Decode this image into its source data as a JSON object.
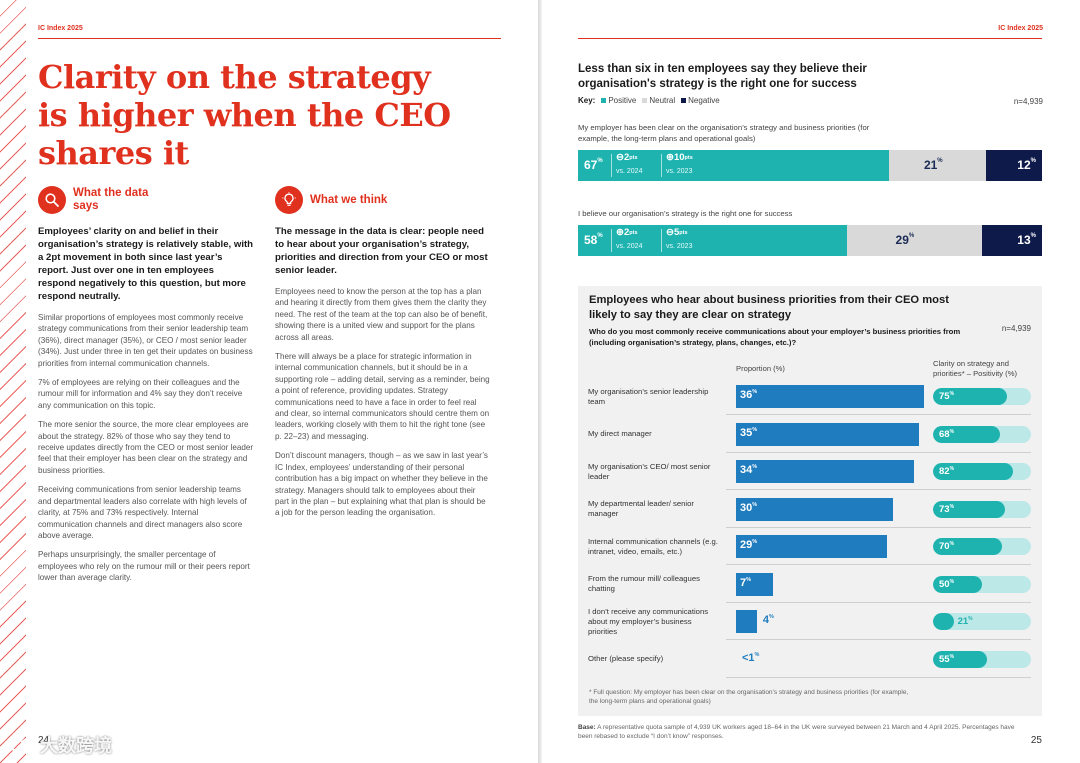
{
  "left_page": {
    "running_head": "IC Index 2025",
    "headline": "Clarity on the strategy is higher when the CEO shares it",
    "page_number": "24",
    "what_data_says": {
      "title": "What the data says",
      "icon": "magnifier-icon",
      "lead": "Employees’ clarity on and belief in their organisation’s strategy is relatively stable, with a 2pt movement in both since last year’s report. Just over one in ten employees respond negatively to this question, but more respond neutrally.",
      "paragraphs": [
        "Similar proportions of employees most commonly receive strategy communications from their senior leadership team (36%), direct manager (35%), or CEO / most senior leader (34%). Just under three in ten get their updates on business priorities from internal communication channels.",
        "7% of employees are relying on their colleagues and the rumour mill for information and 4% say they don’t receive any communication on this topic.",
        "The more senior the source, the more clear employees are about the strategy. 82% of those who say they tend to receive updates directly from the CEO or most senior leader feel that their employer has been clear on the strategy and business priorities.",
        "Receiving communications from senior leadership teams and departmental leaders also correlate with high levels of clarity, at 75% and 73% respectively. Internal communication channels and direct managers also score above average.",
        "Perhaps unsurprisingly, the smaller percentage of employees who rely on the rumour mill or their peers report lower than average clarity."
      ]
    },
    "what_we_think": {
      "title": "What we think",
      "icon": "lightbulb-icon",
      "lead": "The message in the data is clear: people need to hear about your organisation’s strategy, priorities and direction from your CEO or most senior leader.",
      "paragraphs": [
        "Employees need to know the person at the top has a plan and hearing it directly from them gives them the clarity they need. The rest of the team at the top can also be of benefit, showing there is a united view and support for the plans across all areas.",
        "There will always be a place for strategic information in internal communication channels, but it should be in a supporting role – adding detail, serving as a reminder, being a point of reference, providing updates. Strategy communications need to have a face in order to feel real and clear, so internal communicators should centre them on leaders, working closely with them to hit the right tone (see p. 22–23) and messaging.",
        "Don’t discount managers, though – as we saw in last year’s IC Index, employees’ understanding of their personal contribution has a big impact on whether they believe in the strategy. Managers should talk to employees about their part in the plan – but explaining what that plan is should be a job for the person leading the organisation."
      ]
    },
    "watermark": "大数跨境"
  },
  "right_page": {
    "running_head": "IC Index 2025",
    "page_number": "25",
    "base_note_label": "Base:",
    "base_note": "A representative quota sample of 4,939 UK workers aged 18–64 in the UK were surveyed between 21 March and 4 April 2025. Percentages have been rebased to exclude “I don’t know” responses."
  },
  "chart_data": [
    {
      "type": "stacked-bar",
      "title": "Less than six in ten employees say they believe their organisation's strategy is the right one for success",
      "key_label": "Key:",
      "legend": [
        {
          "name": "Positive",
          "color": "#1fb3b0"
        },
        {
          "name": "Neutral",
          "color": "#d9d9d9"
        },
        {
          "name": "Negative",
          "color": "#0e1a4a"
        }
      ],
      "n": "n=4,939",
      "rows": [
        {
          "question": "My employer has been clear on the organisation’s strategy and business priorities (for example, the long-term plans and operational goals)",
          "positive": 67,
          "neutral": 21,
          "negative": 12,
          "changes": [
            {
              "sign": "−",
              "value": "2",
              "unit": "pts",
              "vs": "vs. 2024"
            },
            {
              "sign": "+",
              "value": "10",
              "unit": "pts",
              "vs": "vs. 2023"
            }
          ]
        },
        {
          "question": "I believe our organisation’s strategy is the right one for success",
          "positive": 58,
          "neutral": 29,
          "negative": 13,
          "changes": [
            {
              "sign": "+",
              "value": "2",
              "unit": "pts",
              "vs": "vs. 2024"
            },
            {
              "sign": "−",
              "value": "5",
              "unit": "pts",
              "vs": "vs. 2023"
            }
          ]
        }
      ]
    },
    {
      "type": "bar",
      "title": "Employees who hear about business priorities from their CEO most likely to say they are clear on strategy",
      "question": "Who do you most commonly receive communications about your employer’s business priorities from (including organisation’s strategy, plans, changes, etc.)?",
      "n": "n=4,939",
      "proportion_header": "Proportion (%)",
      "clarity_header": "Clarity on strategy and priorities* – Positivity (%)",
      "categories": [
        "My organisation’s senior leadership team",
        "My direct manager",
        "My organisation’s CEO/ most senior leader",
        "My departmental leader/ senior manager",
        "Internal communication channels (e.g. intranet, video, emails, etc.)",
        "From the rumour mill/ colleagues chatting",
        "I don’t receive any communications about my employer’s business priorities",
        "Other (please specify)"
      ],
      "proportion": [
        36,
        35,
        34,
        30,
        29,
        7,
        4,
        0.5
      ],
      "proportion_labels": [
        "36",
        "35",
        "34",
        "30",
        "29",
        "7",
        "4",
        "<1"
      ],
      "clarity": [
        75,
        68,
        82,
        73,
        70,
        50,
        21,
        55
      ],
      "footnote": "* Full question: My employer has been clear on the organisation’s strategy and business priorities (for example, the long-term plans and operational goals)"
    }
  ]
}
